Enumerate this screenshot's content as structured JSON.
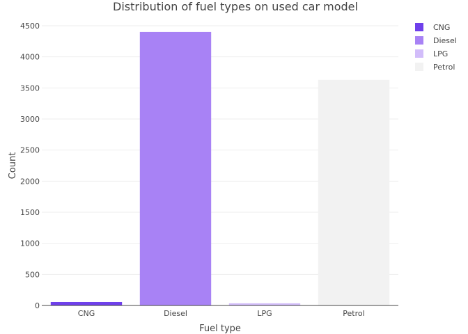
{
  "chart_data": {
    "type": "bar",
    "title": "Distribution of fuel types on used car model",
    "xlabel": "Fuel type",
    "ylabel": "Count",
    "categories": [
      "CNG",
      "Diesel",
      "LPG",
      "Petrol"
    ],
    "values": [
      56,
      4400,
      35,
      3630
    ],
    "colors": [
      "#6f40eb",
      "#a882f5",
      "#d2bdfa",
      "#f2f2f2"
    ],
    "ylim": [
      0,
      4500
    ],
    "yticks": [
      0,
      500,
      1000,
      1500,
      2000,
      2500,
      3000,
      3500,
      4000,
      4500
    ],
    "grid": true,
    "legend": {
      "placement": "top-right",
      "entries": [
        "CNG",
        "Diesel",
        "LPG",
        "Petrol"
      ]
    }
  }
}
